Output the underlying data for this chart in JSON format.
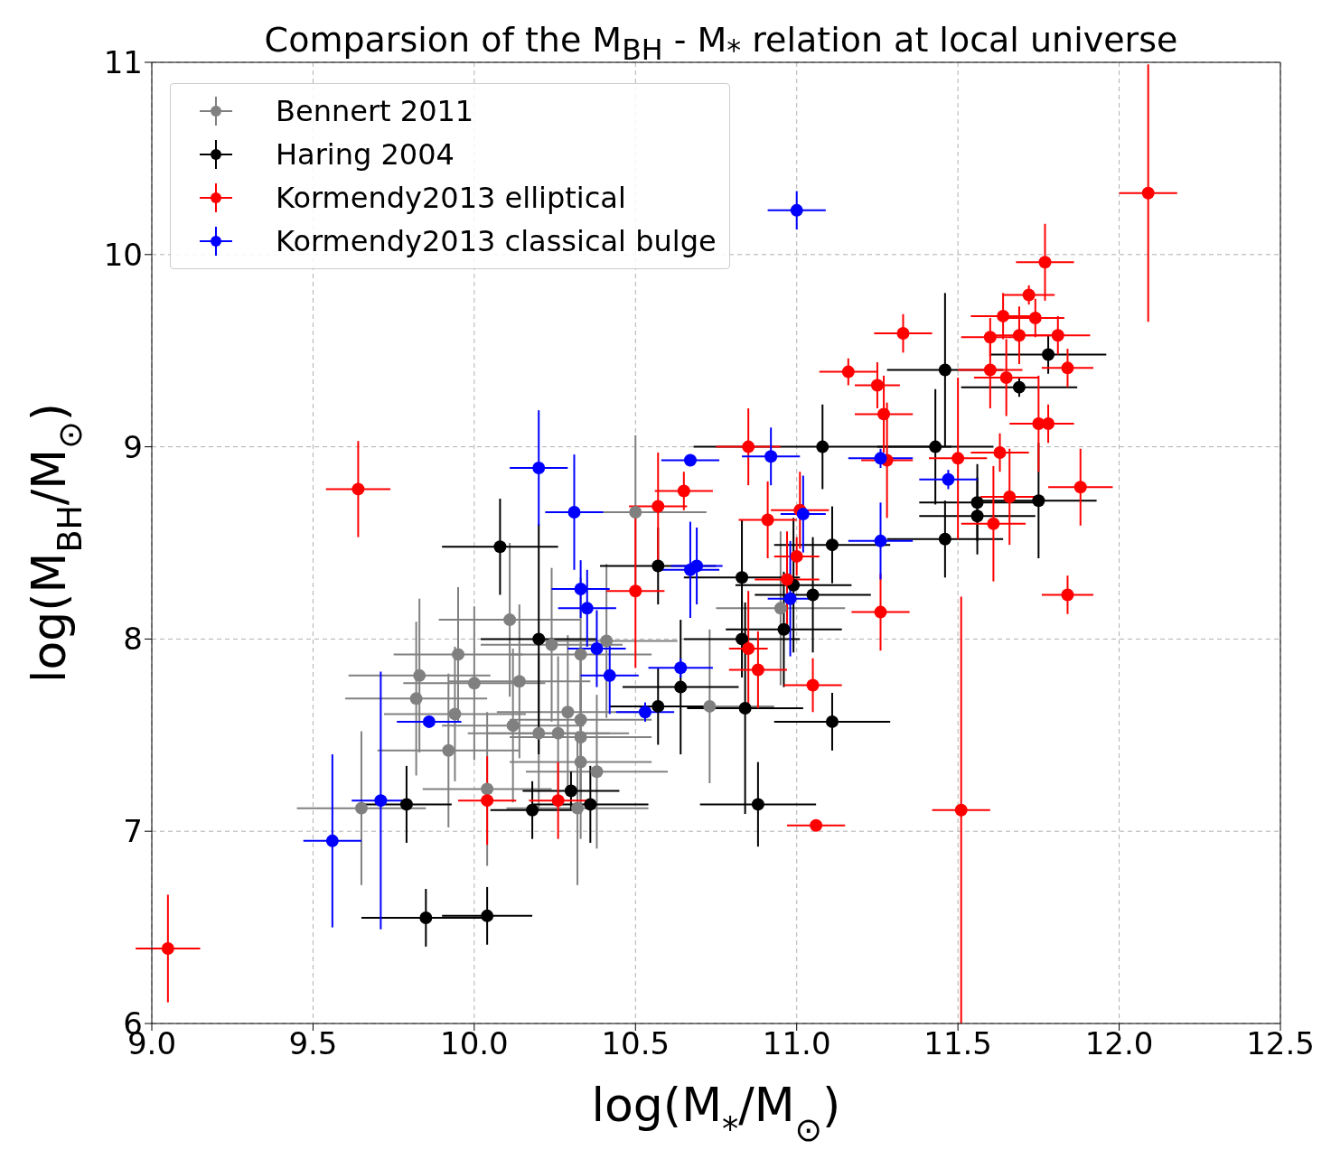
{
  "chart_data": {
    "type": "scatter",
    "title": "Comparsion of the M$_{BH}$ - M$_{*}$ relation at local universe",
    "xlabel": "log(M$_{*}$/M$_{⊙}$)",
    "ylabel": "log(M$_{BH}$/M$_{⊙}$)",
    "xlim": [
      9,
      12.5
    ],
    "xticks": [
      {
        "value": 9,
        "label": "9.0"
      },
      {
        "value": 9.5,
        "label": "9.5"
      },
      {
        "value": 10,
        "label": "10.0"
      },
      {
        "value": 10.5,
        "label": "10.5"
      },
      {
        "value": 11,
        "label": "11.0"
      },
      {
        "value": 11.5,
        "label": "11.5"
      },
      {
        "value": 12,
        "label": "12.0"
      },
      {
        "value": 12.5,
        "label": "12.5"
      }
    ],
    "ylim": [
      6,
      11
    ],
    "yticks": [
      6,
      7,
      8,
      9,
      10,
      11
    ],
    "grid": true,
    "legend": "top left",
    "marker": "circle",
    "series": [
      {
        "name": "Bennert 2011",
        "color": "#808080",
        "x": [
          9.65,
          9.82,
          9.83,
          9.92,
          9.94,
          9.95,
          10.0,
          10.04,
          10.11,
          10.12,
          10.14,
          10.2,
          10.24,
          10.26,
          10.29,
          10.33,
          10.33,
          10.33,
          10.33,
          10.38,
          10.32,
          10.41,
          10.5,
          10.73,
          10.95
        ],
        "values": [
          7.12,
          7.69,
          7.81,
          7.42,
          7.61,
          7.92,
          7.77,
          7.22,
          8.1,
          7.55,
          7.78,
          7.51,
          7.97,
          7.51,
          7.62,
          7.58,
          7.92,
          7.49,
          7.36,
          7.31,
          7.12,
          7.99,
          8.66,
          7.65,
          8.16
        ],
        "xerrors": [
          0.2,
          0.22,
          0.22,
          0.22,
          0.22,
          0.2,
          0.22,
          0.2,
          0.22,
          0.22,
          0.22,
          0.22,
          0.22,
          0.22,
          0.22,
          0.22,
          0.22,
          0.22,
          0.22,
          0.22,
          0.22,
          0.22,
          0.22,
          0.2,
          0.2
        ],
        "errors": [
          0.4,
          0.4,
          0.4,
          0.4,
          0.35,
          0.35,
          0.4,
          0.4,
          0.4,
          0.4,
          0.4,
          0.4,
          0.4,
          0.4,
          0.4,
          0.4,
          0.4,
          0.4,
          0.4,
          0.4,
          0.4,
          0.4,
          0.4,
          0.4,
          0.4
        ]
      },
      {
        "name": "Haring 2004",
        "color": "#000000",
        "x": [
          9.79,
          9.85,
          10.04,
          10.08,
          10.2,
          10.18,
          10.3,
          10.36,
          10.57,
          10.57,
          10.64,
          10.83,
          10.83,
          10.84,
          10.88,
          10.96,
          10.99,
          11.05,
          11.11,
          11.08,
          11.11,
          11.43,
          11.46,
          11.46,
          11.56,
          11.56,
          11.69,
          11.75,
          11.78
        ],
        "values": [
          7.14,
          6.55,
          6.56,
          8.48,
          8.0,
          7.11,
          7.21,
          7.14,
          8.38,
          7.65,
          7.75,
          8.32,
          8.0,
          7.64,
          7.14,
          8.05,
          8.28,
          8.23,
          7.57,
          9.0,
          8.49,
          9.0,
          9.4,
          8.52,
          8.71,
          8.64,
          9.31,
          8.72,
          9.48
        ],
        "xerrors": [
          0.14,
          0.2,
          0.14,
          0.18,
          0.18,
          0.13,
          0.15,
          0.18,
          0.18,
          0.15,
          0.18,
          0.18,
          0.18,
          0.18,
          0.18,
          0.18,
          0.18,
          0.18,
          0.18,
          0.4,
          0.18,
          0.18,
          0.18,
          0.18,
          0.18,
          0.18,
          0.18,
          0.18,
          0.18
        ],
        "errors": [
          0.2,
          0.15,
          0.15,
          0.25,
          0.6,
          0.15,
          0.1,
          0.2,
          0.2,
          0.2,
          0.35,
          0.3,
          0.2,
          0.55,
          0.22,
          0.3,
          0.35,
          0.3,
          0.15,
          0.22,
          0.2,
          0.3,
          0.4,
          0.2,
          0.2,
          0.2,
          0.05,
          0.3,
          0.1
        ]
      },
      {
        "name": "Kormendy2013 elliptical",
        "color": "#ff0000",
        "x": [
          9.05,
          9.64,
          10.04,
          10.26,
          10.5,
          10.57,
          10.65,
          10.85,
          10.91,
          11.01,
          11.0,
          10.97,
          10.85,
          10.88,
          11.05,
          11.06,
          11.16,
          11.25,
          11.27,
          11.28,
          11.26,
          11.33,
          11.5,
          11.51,
          11.63,
          11.66,
          11.61,
          11.6,
          11.6,
          11.64,
          11.65,
          11.69,
          11.72,
          11.74,
          11.77,
          11.81,
          11.84,
          11.75,
          11.78,
          11.88,
          11.84,
          12.09
        ],
        "values": [
          6.39,
          8.78,
          7.16,
          7.16,
          8.25,
          8.69,
          8.77,
          9.0,
          8.62,
          8.67,
          8.43,
          8.31,
          7.95,
          7.84,
          7.76,
          7.03,
          9.39,
          9.32,
          9.17,
          8.93,
          8.14,
          9.59,
          8.94,
          7.11,
          8.97,
          8.74,
          8.6,
          9.4,
          9.57,
          9.68,
          9.36,
          9.58,
          9.79,
          9.67,
          9.96,
          9.58,
          9.41,
          9.12,
          9.12,
          8.79,
          8.23,
          10.32
        ],
        "xerrors": [
          0.1,
          0.1,
          0.09,
          0.09,
          0.09,
          0.09,
          0.09,
          0.1,
          0.09,
          0.09,
          0.07,
          0.1,
          0.06,
          0.09,
          0.09,
          0.09,
          0.09,
          0.07,
          0.09,
          0.08,
          0.09,
          0.09,
          0.09,
          0.09,
          0.09,
          0.09,
          0.1,
          0.1,
          0.09,
          0.1,
          0.1,
          0.1,
          0.08,
          0.09,
          0.09,
          0.1,
          0.08,
          0.09,
          0.08,
          0.1,
          0.08,
          0.09
        ],
        "errors": [
          0.28,
          0.25,
          0.23,
          0.2,
          0.4,
          0.28,
          0.1,
          0.2,
          0.2,
          0.2,
          0.1,
          0.25,
          0.3,
          0.2,
          0.14,
          null,
          0.07,
          0.12,
          0.2,
          0.3,
          0.2,
          0.1,
          0.42,
          1.11,
          0.1,
          0.25,
          0.3,
          0.2,
          0.1,
          0.12,
          0.2,
          0.15,
          0.05,
          0.1,
          0.2,
          0.1,
          0.1,
          0.25,
          0.1,
          0.2,
          0.1,
          0.67
        ]
      },
      {
        "name": "Kormendy2013 classical bulge",
        "color": "#0000ff",
        "x": [
          9.56,
          9.71,
          9.86,
          10.2,
          10.31,
          10.33,
          10.35,
          10.38,
          10.42,
          10.53,
          10.64,
          10.67,
          10.67,
          10.69,
          10.92,
          11.02,
          10.98,
          11.0,
          11.26,
          11.26,
          11.47
        ],
        "values": [
          6.95,
          7.16,
          7.57,
          8.89,
          8.66,
          8.26,
          8.16,
          7.95,
          7.81,
          7.62,
          7.85,
          8.93,
          8.36,
          8.38,
          8.95,
          8.65,
          8.21,
          10.23,
          8.94,
          8.51,
          8.83
        ],
        "xerrors": [
          0.09,
          0.09,
          0.1,
          0.09,
          0.09,
          0.09,
          0.09,
          0.09,
          0.09,
          0.09,
          0.1,
          0.09,
          0.09,
          0.08,
          0.09,
          0.07,
          0.07,
          0.09,
          0.1,
          0.1,
          0.09
        ],
        "errors": [
          0.45,
          0.67,
          null,
          0.3,
          0.3,
          0.15,
          0.2,
          0.2,
          0.2,
          0.05,
          0.05,
          0.03,
          0.25,
          0.2,
          0.15,
          0.2,
          0.3,
          0.1,
          0.05,
          0.2,
          0.05
        ]
      }
    ]
  }
}
